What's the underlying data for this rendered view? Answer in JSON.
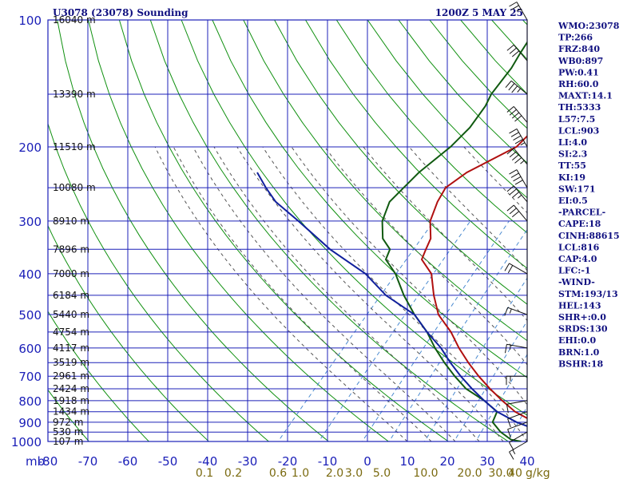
{
  "header": {
    "station": "U3078 (23078) Sounding",
    "time": "1200Z  5 MAY 25"
  },
  "chart_data": {
    "type": "line",
    "title": "U3078 (23078) Sounding",
    "xlabel": "",
    "ylabel": "mb",
    "xlim": [
      -80,
      0
    ],
    "ylim": [
      1000,
      100
    ],
    "x_ticks": [
      "-80",
      "-70",
      "-60",
      "-50",
      "-40",
      "-30",
      "-20",
      "-10",
      "0",
      "10",
      "20",
      "30",
      "40"
    ],
    "pressure_levels": [
      100,
      200,
      300,
      400,
      500,
      600,
      700,
      800,
      900,
      1000
    ],
    "pressure_labels": [
      "100",
      "200",
      "300",
      "400",
      "500",
      "600",
      "700",
      "800",
      "900",
      "1000"
    ],
    "height_labels": [
      {
        "p": 100,
        "label": "16040 m"
      },
      {
        "p": 150,
        "label": "13390 m"
      },
      {
        "p": 200,
        "label": "11510 m"
      },
      {
        "p": 250,
        "label": "10080 m"
      },
      {
        "p": 300,
        "label": "8910 m"
      },
      {
        "p": 350,
        "label": "7896 m"
      },
      {
        "p": 400,
        "label": "7000 m"
      },
      {
        "p": 450,
        "label": "6184 m"
      },
      {
        "p": 500,
        "label": "5440 m"
      },
      {
        "p": 550,
        "label": "4754 m"
      },
      {
        "p": 600,
        "label": "4117 m"
      },
      {
        "p": 650,
        "label": "3519 m"
      },
      {
        "p": 700,
        "label": "2961 m"
      },
      {
        "p": 750,
        "label": "2424 m"
      },
      {
        "p": 800,
        "label": "1918 m"
      },
      {
        "p": 850,
        "label": "1434 m"
      },
      {
        "p": 900,
        "label": "972 m"
      },
      {
        "p": 950,
        "label": "530 m"
      },
      {
        "p": 1000,
        "label": "107 m"
      }
    ],
    "mixing_ratio_labels": [
      "0.1",
      "0.2",
      "0.6",
      "1.0",
      "2.0",
      "3.0",
      "5.0",
      "10.0",
      "20.0",
      "30.0",
      "40"
    ],
    "mixing_ratio_unit": "g/kg",
    "series": [
      {
        "color": "#b01010",
        "points": [
          [
            1000,
            7
          ],
          [
            990,
            9
          ],
          [
            950,
            4
          ],
          [
            900,
            -2
          ],
          [
            850,
            -7
          ],
          [
            800,
            -11
          ],
          [
            750,
            -15
          ],
          [
            700,
            -19
          ],
          [
            650,
            -23
          ],
          [
            600,
            -27
          ],
          [
            550,
            -31
          ],
          [
            500,
            -36
          ],
          [
            450,
            -40
          ],
          [
            400,
            -44
          ],
          [
            370,
            -48
          ],
          [
            350,
            -49
          ],
          [
            330,
            -50
          ],
          [
            300,
            -53
          ],
          [
            270,
            -55
          ],
          [
            250,
            -56
          ],
          [
            230,
            -55
          ],
          [
            200,
            -51
          ],
          [
            180,
            -51
          ],
          [
            160,
            -51
          ],
          [
            150,
            -50
          ],
          [
            130,
            -49
          ],
          [
            120,
            -49
          ],
          [
            100,
            -50
          ]
        ]
      },
      {
        "color": "#105a10",
        "points": [
          [
            1000,
            -1
          ],
          [
            990,
            -3
          ],
          [
            950,
            -6
          ],
          [
            900,
            -9
          ],
          [
            850,
            -10
          ],
          [
            800,
            -14
          ],
          [
            750,
            -19
          ],
          [
            700,
            -23
          ],
          [
            650,
            -27
          ],
          [
            600,
            -31
          ],
          [
            550,
            -35
          ],
          [
            500,
            -40
          ],
          [
            450,
            -45
          ],
          [
            400,
            -50
          ],
          [
            370,
            -54
          ],
          [
            350,
            -55
          ],
          [
            330,
            -58
          ],
          [
            300,
            -61
          ],
          [
            270,
            -63
          ],
          [
            250,
            -63
          ],
          [
            230,
            -63
          ],
          [
            200,
            -62
          ],
          [
            180,
            -62
          ],
          [
            160,
            -63
          ],
          [
            150,
            -64
          ],
          [
            130,
            -65
          ],
          [
            120,
            -66
          ],
          [
            100,
            -68
          ]
        ]
      },
      {
        "color": "#10209c",
        "points": [
          [
            1000,
            9
          ],
          [
            950,
            1
          ],
          [
            900,
            -5
          ],
          [
            850,
            -10
          ],
          [
            800,
            -14
          ],
          [
            750,
            -18
          ],
          [
            700,
            -22
          ],
          [
            650,
            -26
          ],
          [
            600,
            -30
          ],
          [
            550,
            -35
          ],
          [
            500,
            -40
          ],
          [
            450,
            -48
          ],
          [
            400,
            -55
          ],
          [
            350,
            -65
          ],
          [
            300,
            -75
          ],
          [
            270,
            -82
          ],
          [
            250,
            -86
          ],
          [
            230,
            -90
          ]
        ]
      }
    ]
  },
  "indices": [
    "WMO:23078",
    "TP:266",
    "FRZ:840",
    "WB0:897",
    "PW:0.41",
    "RH:60.0",
    "MAXT:14.1",
    "TH:5333",
    "L57:7.5",
    "LCL:903",
    "LI:4.0",
    "SI:2.3",
    "TT:55",
    "KI:19",
    "SW:171",
    "EI:0.5",
    "-PARCEL-",
    "CAPE:18",
    "CINH:88615",
    "LCL:816",
    "CAP:4.0",
    "LFC:-1",
    "-WIND-",
    "STM:193/13",
    "HEL:143",
    "SHR+:0.0",
    "SRDS:130",
    "EHI:0.0",
    "BRN:1.0",
    "BSHR:18"
  ],
  "colors": {
    "grid": "#1c20b8",
    "dry_adiabat": "#109010",
    "moist_adiabat": "#555555",
    "mixing_ratio": "#4a8ad0",
    "wind_barb": "#111111"
  },
  "wind_barbs": [
    {
      "p": 100,
      "dir": 330,
      "spd": 25
    },
    {
      "p": 125,
      "dir": 320,
      "spd": 30
    },
    {
      "p": 150,
      "dir": 310,
      "spd": 35
    },
    {
      "p": 175,
      "dir": 320,
      "spd": 40
    },
    {
      "p": 200,
      "dir": 330,
      "spd": 45
    },
    {
      "p": 220,
      "dir": 320,
      "spd": 45
    },
    {
      "p": 250,
      "dir": 330,
      "spd": 40
    },
    {
      "p": 270,
      "dir": 320,
      "spd": 35
    },
    {
      "p": 300,
      "dir": 320,
      "spd": 30
    },
    {
      "p": 400,
      "dir": 300,
      "spd": 20
    },
    {
      "p": 500,
      "dir": 290,
      "spd": 15
    },
    {
      "p": 600,
      "dir": 280,
      "spd": 15
    },
    {
      "p": 700,
      "dir": 270,
      "spd": 15
    },
    {
      "p": 800,
      "dir": 260,
      "spd": 10
    },
    {
      "p": 850,
      "dir": 250,
      "spd": 10
    },
    {
      "p": 900,
      "dir": 250,
      "spd": 10
    },
    {
      "p": 950,
      "dir": 240,
      "spd": 10
    },
    {
      "p": 1000,
      "dir": 240,
      "spd": 15
    }
  ]
}
